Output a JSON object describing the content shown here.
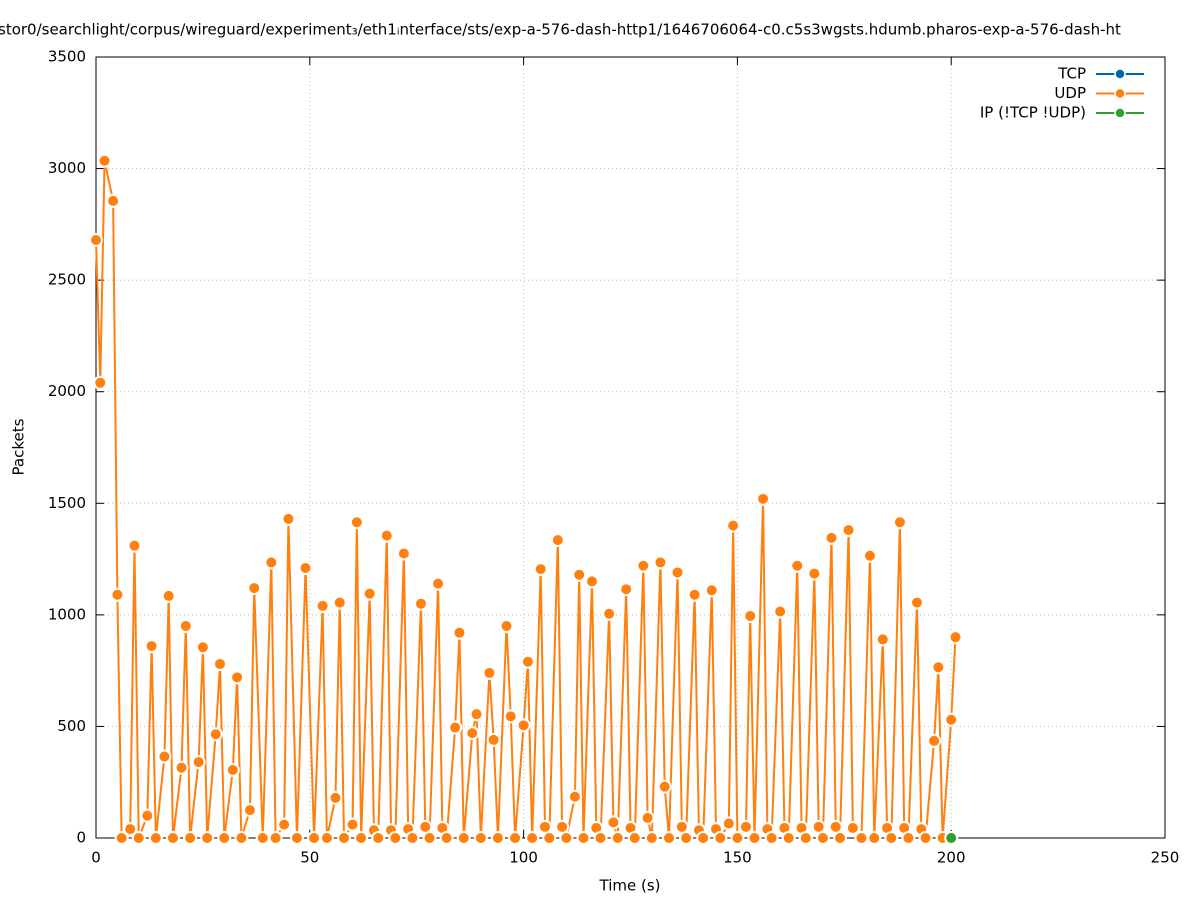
{
  "chart_data": {
    "type": "line",
    "title": "stor0/searchlight/corpus/wireguard/experiment₃/eth1ᵢnterface/sts/exp-a-576-dash-http1/1646706064-c0.c5s3wgsts.hdumb.pharos-exp-a-576-dash-ht",
    "xlabel": "Time (s)",
    "ylabel": "Packets",
    "xlim": [
      0,
      250
    ],
    "xticks": [
      0,
      50,
      100,
      150,
      200,
      250
    ],
    "ylim": [
      0,
      3500
    ],
    "yticks": [
      0,
      500,
      1000,
      1500,
      2000,
      2500,
      3000,
      3500
    ],
    "grid": true,
    "legend": "top-right",
    "series": [
      {
        "name": "TCP",
        "color": "#0066b3",
        "x": [],
        "values": []
      },
      {
        "name": "UDP",
        "color": "#ff800e",
        "x": [
          0,
          1,
          2,
          4,
          5,
          6,
          8,
          9,
          10,
          12,
          13,
          14,
          16,
          17,
          18,
          20,
          21,
          22,
          24,
          25,
          26,
          28,
          29,
          30,
          32,
          33,
          34,
          36,
          37,
          39,
          41,
          42,
          44,
          45,
          47,
          49,
          51,
          53,
          54,
          56,
          57,
          58,
          60,
          61,
          62,
          64,
          65,
          66,
          68,
          69,
          70,
          72,
          73,
          74,
          76,
          77,
          78,
          80,
          81,
          82,
          84,
          85,
          86,
          88,
          89,
          90,
          92,
          93,
          94,
          96,
          97,
          98,
          100,
          101,
          102,
          104,
          105,
          106,
          108,
          109,
          110,
          112,
          113,
          114,
          116,
          117,
          118,
          120,
          121,
          122,
          124,
          125,
          126,
          128,
          129,
          130,
          132,
          133,
          134,
          136,
          137,
          138,
          140,
          141,
          142,
          144,
          145,
          146,
          148,
          149,
          150,
          152,
          153,
          154,
          156,
          157,
          158,
          160,
          161,
          162,
          164,
          165,
          166,
          168,
          169,
          170,
          172,
          173,
          174,
          176,
          177,
          179,
          181,
          182,
          184,
          185,
          186,
          188,
          189,
          190,
          192,
          193,
          194,
          196,
          197,
          198,
          200,
          201
        ],
        "values": [
          2680,
          2040,
          3035,
          2855,
          1090,
          0,
          40,
          1310,
          0,
          100,
          860,
          0,
          365,
          1085,
          0,
          315,
          950,
          0,
          340,
          855,
          0,
          465,
          780,
          0,
          305,
          720,
          0,
          125,
          1120,
          0,
          1235,
          0,
          60,
          1430,
          0,
          1210,
          0,
          1040,
          0,
          180,
          1055,
          0,
          60,
          1415,
          0,
          1095,
          35,
          0,
          1355,
          35,
          0,
          1275,
          40,
          0,
          1050,
          50,
          0,
          1140,
          45,
          0,
          495,
          920,
          0,
          470,
          555,
          0,
          740,
          440,
          0,
          950,
          545,
          0,
          505,
          790,
          0,
          1205,
          50,
          0,
          1335,
          50,
          0,
          185,
          1180,
          0,
          1150,
          45,
          0,
          1005,
          70,
          0,
          1115,
          45,
          0,
          1220,
          90,
          0,
          1235,
          230,
          0,
          1190,
          50,
          0,
          1090,
          35,
          0,
          1110,
          40,
          0,
          65,
          1400,
          0,
          50,
          995,
          0,
          1520,
          40,
          0,
          1015,
          45,
          0,
          1220,
          45,
          0,
          1185,
          50,
          0,
          1345,
          50,
          0,
          1380,
          45,
          0,
          1265,
          0,
          890,
          45,
          0,
          1415,
          45,
          0,
          1055,
          40,
          0,
          435,
          765,
          0,
          530,
          900
        ]
      },
      {
        "name": "IP (!TCP  !UDP)",
        "color": "#2ca02c",
        "x": [
          200
        ],
        "values": [
          0
        ]
      }
    ]
  }
}
